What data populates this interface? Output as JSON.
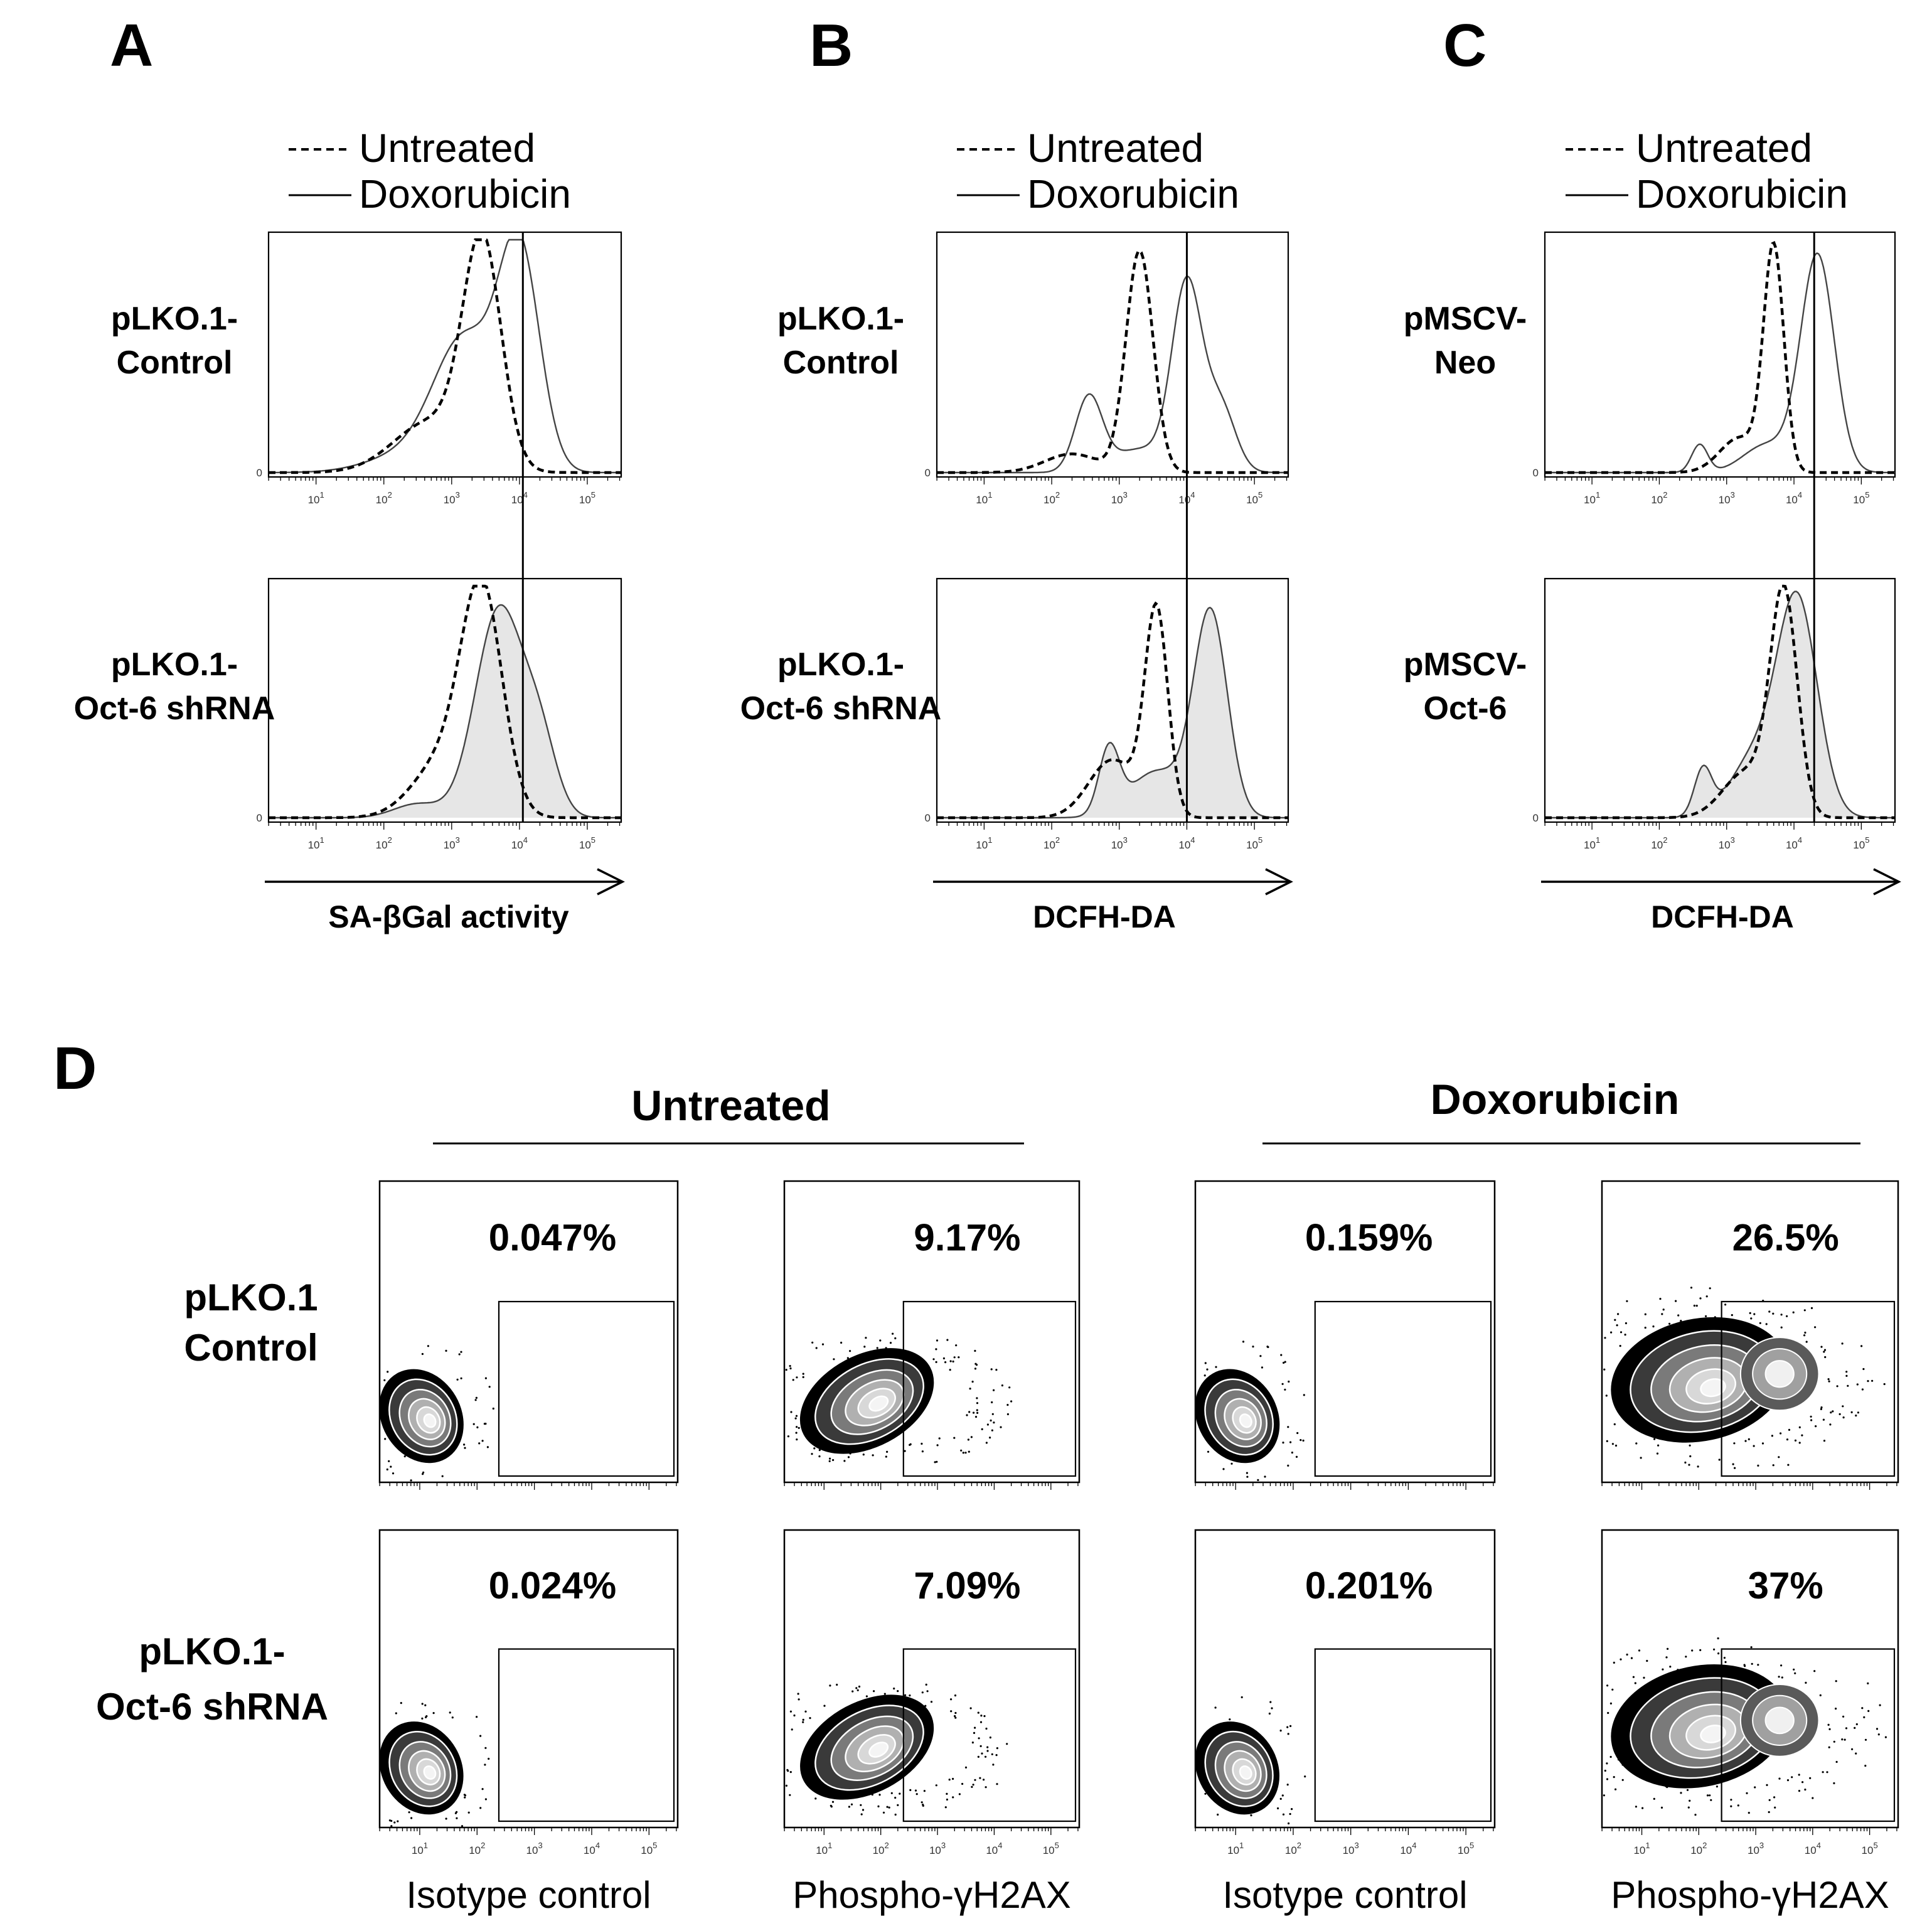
{
  "chart_data": [
    {
      "panel": "A",
      "type": "histogram",
      "x_scale": "log",
      "xlim_log10": [
        0.3,
        5.5
      ],
      "xticks": [
        "10^1",
        "10^2",
        "10^3",
        "10^4",
        "10^5"
      ],
      "ytick": "0",
      "xlabel": "SA-βGal activity",
      "legend": [
        "Untreated",
        "Doxorubicin"
      ],
      "marker_line_log10": 4.05,
      "rows": [
        {
          "label_lines": [
            "pLKO.1-",
            "Control"
          ],
          "filled": false,
          "series": [
            {
              "name": "Untreated",
              "style": "dashed",
              "peaks": [
                {
                  "mu": 3.45,
                  "sigma": 0.28,
                  "h": 0.95
                },
                {
                  "mu": 2.7,
                  "sigma": 0.55,
                  "h": 0.22
                }
              ]
            },
            {
              "name": "Doxorubicin",
              "style": "solid",
              "peaks": [
                {
                  "mu": 4.0,
                  "sigma": 0.3,
                  "h": 0.92
                },
                {
                  "mu": 3.2,
                  "sigma": 0.45,
                  "h": 0.55
                },
                {
                  "mu": 2.4,
                  "sigma": 0.6,
                  "h": 0.08
                }
              ]
            }
          ]
        },
        {
          "label_lines": [
            "pLKO.1-",
            "Oct-6  shRNA"
          ],
          "filled": true,
          "series": [
            {
              "name": "Untreated",
              "style": "dashed",
              "peaks": [
                {
                  "mu": 3.45,
                  "sigma": 0.3,
                  "h": 0.92
                },
                {
                  "mu": 2.9,
                  "sigma": 0.45,
                  "h": 0.25
                }
              ]
            },
            {
              "name": "Doxorubicin",
              "style": "solid",
              "peaks": [
                {
                  "mu": 3.7,
                  "sigma": 0.35,
                  "h": 0.9
                },
                {
                  "mu": 4.3,
                  "sigma": 0.25,
                  "h": 0.3
                },
                {
                  "mu": 2.5,
                  "sigma": 0.35,
                  "h": 0.06
                }
              ]
            }
          ]
        }
      ]
    },
    {
      "panel": "B",
      "type": "histogram",
      "x_scale": "log",
      "xlim_log10": [
        0.3,
        5.5
      ],
      "xticks": [
        "10^1",
        "10^2",
        "10^3",
        "10^4",
        "10^5"
      ],
      "ytick": "0",
      "xlabel": "DCFH-DA",
      "legend": [
        "Untreated",
        "Doxorubicin"
      ],
      "marker_line_log10": 4.0,
      "rows": [
        {
          "label_lines": [
            "pLKO.1-",
            "Control"
          ],
          "filled": false,
          "series": [
            {
              "name": "Untreated",
              "style": "dashed",
              "peaks": [
                {
                  "mu": 3.3,
                  "sigma": 0.2,
                  "h": 0.95
                },
                {
                  "mu": 2.3,
                  "sigma": 0.4,
                  "h": 0.08
                }
              ]
            },
            {
              "name": "Doxorubicin",
              "style": "solid",
              "peaks": [
                {
                  "mu": 4.0,
                  "sigma": 0.22,
                  "h": 0.8
                },
                {
                  "mu": 2.55,
                  "sigma": 0.2,
                  "h": 0.32
                },
                {
                  "mu": 4.5,
                  "sigma": 0.22,
                  "h": 0.28
                },
                {
                  "mu": 3.3,
                  "sigma": 0.4,
                  "h": 0.1
                }
              ]
            }
          ]
        },
        {
          "label_lines": [
            "pLKO.1-",
            "Oct-6  shRNA"
          ],
          "filled": true,
          "series": [
            {
              "name": "Untreated",
              "style": "dashed",
              "peaks": [
                {
                  "mu": 3.55,
                  "sigma": 0.17,
                  "h": 0.88
                },
                {
                  "mu": 2.9,
                  "sigma": 0.35,
                  "h": 0.25
                }
              ]
            },
            {
              "name": "Doxorubicin",
              "style": "solid",
              "peaks": [
                {
                  "mu": 4.35,
                  "sigma": 0.25,
                  "h": 0.88
                },
                {
                  "mu": 2.85,
                  "sigma": 0.15,
                  "h": 0.28
                },
                {
                  "mu": 3.55,
                  "sigma": 0.4,
                  "h": 0.2
                }
              ]
            }
          ]
        }
      ]
    },
    {
      "panel": "C",
      "type": "histogram",
      "x_scale": "log",
      "xlim_log10": [
        0.3,
        5.5
      ],
      "xticks": [
        "10^1",
        "10^2",
        "10^3",
        "10^4",
        "10^5"
      ],
      "ytick": "0",
      "xlabel": "DCFH-DA",
      "legend": [
        "Untreated",
        "Doxorubicin"
      ],
      "marker_line_log10": 4.3,
      "rows": [
        {
          "label_lines": [
            "pMSCV-",
            "Neo"
          ],
          "filled": false,
          "series": [
            {
              "name": "Untreated",
              "style": "dashed",
              "peaks": [
                {
                  "mu": 3.7,
                  "sigma": 0.15,
                  "h": 0.95
                },
                {
                  "mu": 3.2,
                  "sigma": 0.3,
                  "h": 0.15
                }
              ]
            },
            {
              "name": "Doxorubicin",
              "style": "solid",
              "peaks": [
                {
                  "mu": 4.35,
                  "sigma": 0.25,
                  "h": 0.93
                },
                {
                  "mu": 2.6,
                  "sigma": 0.12,
                  "h": 0.12
                },
                {
                  "mu": 3.6,
                  "sigma": 0.35,
                  "h": 0.12
                }
              ]
            }
          ]
        },
        {
          "label_lines": [
            "pMSCV-",
            "Oct-6"
          ],
          "filled": true,
          "series": [
            {
              "name": "Untreated",
              "style": "dashed",
              "peaks": [
                {
                  "mu": 3.85,
                  "sigma": 0.2,
                  "h": 0.95
                },
                {
                  "mu": 3.3,
                  "sigma": 0.35,
                  "h": 0.2
                }
              ]
            },
            {
              "name": "Doxorubicin",
              "style": "solid",
              "peaks": [
                {
                  "mu": 4.05,
                  "sigma": 0.3,
                  "h": 0.93
                },
                {
                  "mu": 2.65,
                  "sigma": 0.13,
                  "h": 0.2
                },
                {
                  "mu": 3.4,
                  "sigma": 0.35,
                  "h": 0.25
                }
              ]
            }
          ]
        }
      ]
    },
    {
      "panel": "D",
      "type": "density-contour",
      "x_scale": "log",
      "xlim_log10": [
        0.3,
        5.5
      ],
      "xticks": [
        "10^1",
        "10^2",
        "10^3",
        "10^4",
        "10^5"
      ],
      "gate_start_log10": 2.4,
      "groups": [
        "Untreated",
        "Doxorubicin"
      ],
      "columns": [
        {
          "group": "Untreated",
          "xlabel": "Isotype control"
        },
        {
          "group": "Untreated",
          "xlabel": "Phospho-γH2AX"
        },
        {
          "group": "Doxorubicin",
          "xlabel": "Isotype control"
        },
        {
          "group": "Doxorubicin",
          "xlabel": "Phospho-γH2AX"
        }
      ],
      "rows": [
        {
          "label_lines": [
            "pLKO.1",
            "Control"
          ],
          "gate_percent": [
            "0.047%",
            "9.17%",
            "0.159%",
            "26.5%"
          ]
        },
        {
          "label_lines": [
            "pLKO.1-",
            "Oct-6 shRNA"
          ],
          "gate_percent": [
            "0.024%",
            "7.09%",
            "0.201%",
            "37%"
          ]
        }
      ]
    }
  ],
  "colors": {
    "fill": "#e6e6e6",
    "line": "#000000",
    "dashed": "#000000",
    "contour_outer": "#000000"
  }
}
